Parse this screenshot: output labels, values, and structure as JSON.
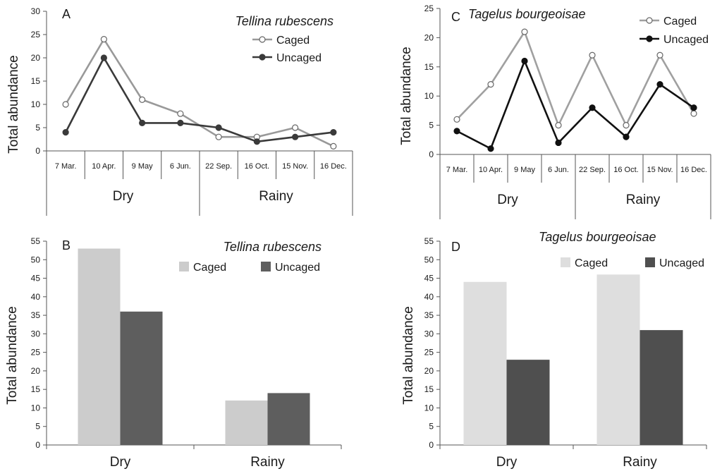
{
  "chart_data": [
    {
      "type": "line",
      "panel": "A",
      "title": "Tellina rubescens",
      "ylabel": "Total abundance",
      "ylim": [
        0,
        30
      ],
      "yticks": [
        0,
        5,
        10,
        15,
        20,
        25,
        30
      ],
      "categories": [
        "7 Mar.",
        "10 Apr.",
        "9 May",
        "6 Jun.",
        "22 Sep.",
        "16 Oct.",
        "15 Nov.",
        "16 Dec."
      ],
      "groups": [
        {
          "label": "Dry",
          "count": 4
        },
        {
          "label": "Rainy",
          "count": 4
        }
      ],
      "legend_position": "top-right",
      "series": [
        {
          "name": "Caged",
          "color": "#999999",
          "marker": "open",
          "values": [
            10,
            24,
            11,
            8,
            3,
            3,
            5,
            1
          ]
        },
        {
          "name": "Uncaged",
          "color": "#3a3a3a",
          "marker": "filled",
          "values": [
            4,
            20,
            6,
            6,
            5,
            2,
            3,
            4
          ]
        }
      ]
    },
    {
      "type": "line",
      "panel": "C",
      "title": "Tagelus bourgeoisae",
      "ylabel": "Total abundance",
      "ylim": [
        0,
        25
      ],
      "yticks": [
        0,
        5,
        10,
        15,
        20,
        25
      ],
      "categories": [
        "7 Mar.",
        "10 Apr.",
        "9 May",
        "6 Jun.",
        "22 Sep.",
        "16 Oct.",
        "15 Nov.",
        "16 Dec."
      ],
      "groups": [
        {
          "label": "Dry",
          "count": 4
        },
        {
          "label": "Rainy",
          "count": 4
        }
      ],
      "legend_position": "top-right",
      "series": [
        {
          "name": "Caged",
          "color": "#a0a0a0",
          "marker": "open",
          "values": [
            6,
            12,
            21,
            5,
            17,
            5,
            17,
            7
          ]
        },
        {
          "name": "Uncaged",
          "color": "#111111",
          "marker": "filled",
          "values": [
            4,
            1,
            16,
            2,
            8,
            3,
            12,
            8
          ]
        }
      ]
    },
    {
      "type": "bar",
      "panel": "B",
      "title": "Tellina rubescens",
      "ylabel": "Total abundance",
      "ylim": [
        0,
        55
      ],
      "yticks": [
        0,
        5,
        10,
        15,
        20,
        25,
        30,
        35,
        40,
        45,
        50,
        55
      ],
      "categories": [
        "Dry",
        "Rainy"
      ],
      "legend_position": "top-right",
      "series": [
        {
          "name": "Caged",
          "color": "#cccccc",
          "values": [
            53,
            12
          ]
        },
        {
          "name": "Uncaged",
          "color": "#5e5e5e",
          "values": [
            36,
            14
          ]
        }
      ]
    },
    {
      "type": "bar",
      "panel": "D",
      "title": "Tagelus bourgeoisae",
      "ylabel": "Total abundance",
      "ylim": [
        0,
        55
      ],
      "yticks": [
        0,
        5,
        10,
        15,
        20,
        25,
        30,
        35,
        40,
        45,
        50,
        55
      ],
      "categories": [
        "Dry",
        "Rainy"
      ],
      "legend_position": "top-right",
      "series": [
        {
          "name": "Caged",
          "color": "#dedede",
          "values": [
            44,
            46
          ]
        },
        {
          "name": "Uncaged",
          "color": "#4f4f4f",
          "values": [
            23,
            31
          ]
        }
      ]
    }
  ]
}
